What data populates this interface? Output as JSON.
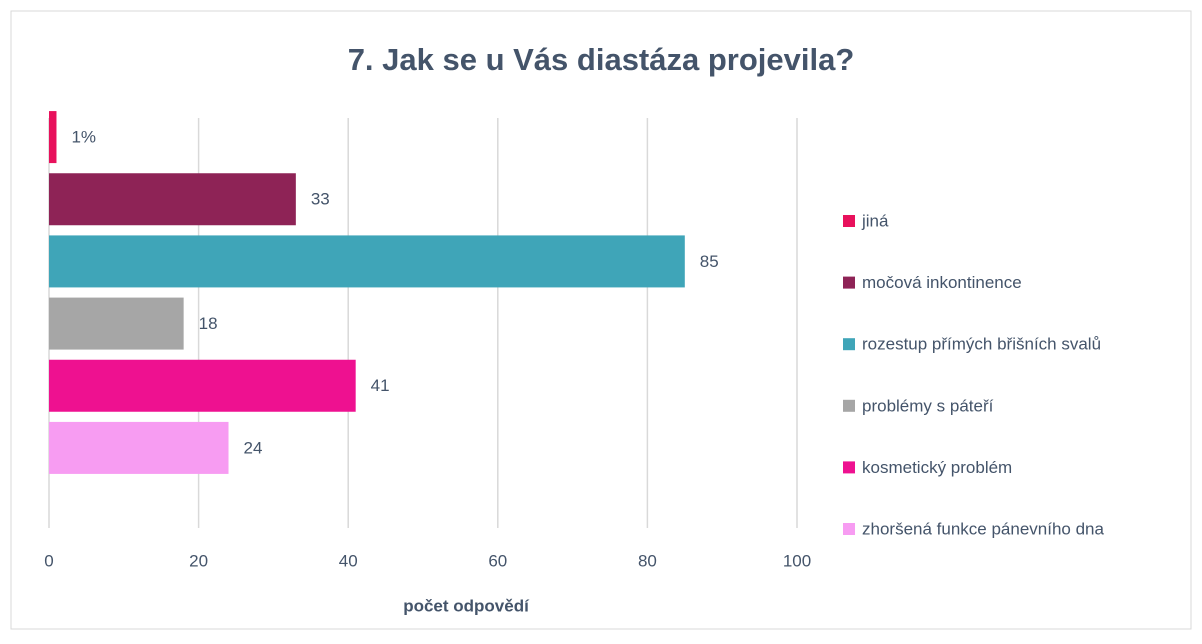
{
  "chart_data": {
    "type": "bar",
    "orientation": "horizontal",
    "title": "7. Jak se u Vás diastáza projevila?",
    "x_label": "počet odpovědí",
    "categories": [
      "jiná",
      "močová inkontinence",
      "rozestup přímých břišních svalů",
      "problémy s páteří",
      "kosmetický problém",
      "zhoršená funkce pánevního dna"
    ],
    "values": [
      1,
      33,
      85,
      18,
      41,
      24
    ],
    "value_labels": [
      "1%",
      "33",
      "85",
      "18",
      "41",
      "24"
    ],
    "colors": [
      "#e8115c",
      "#8e2356",
      "#3fa5b8",
      "#a6a6a6",
      "#ee1190",
      "#f79cf2"
    ],
    "xlim": [
      0,
      100
    ],
    "xticks": [
      0,
      20,
      40,
      60,
      80,
      100
    ],
    "grid": true,
    "legend": "right"
  }
}
